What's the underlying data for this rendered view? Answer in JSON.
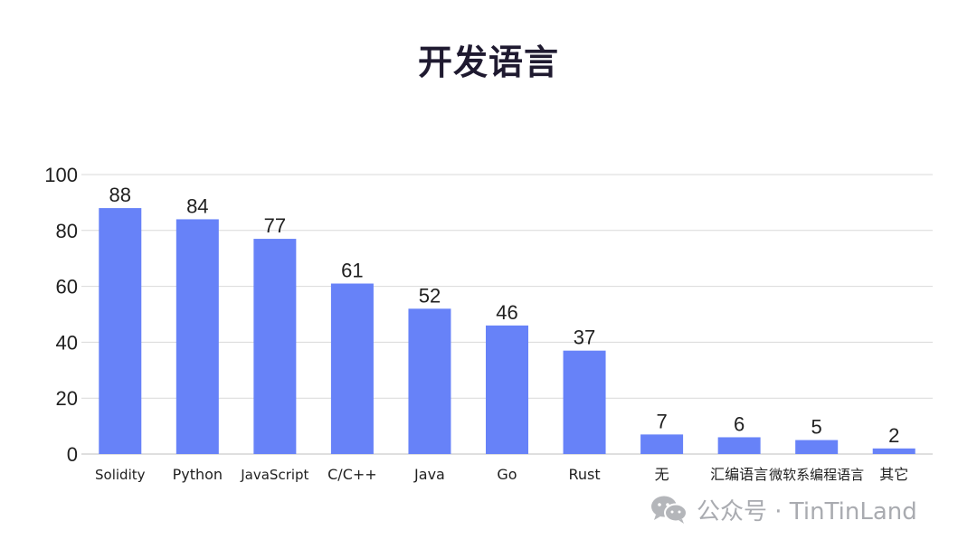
{
  "chart_data": {
    "type": "bar",
    "title": "开发语言",
    "categories": [
      "Solidity",
      "Python",
      "JavaScript",
      "C/C++",
      "Java",
      "Go",
      "Rust",
      "无",
      "汇编语言",
      "微软系编程语言",
      "其它"
    ],
    "values": [
      88,
      84,
      77,
      61,
      52,
      46,
      37,
      7,
      6,
      5,
      2
    ],
    "ylim": [
      0,
      100
    ],
    "yticks": [
      0,
      20,
      40,
      60,
      80,
      100
    ],
    "xlabel": "",
    "ylabel": "",
    "grid": true,
    "legend": "none",
    "bar_color": "#6782f8",
    "grid_color": "#d9d9d9",
    "text_color": "#1f1f1f"
  },
  "watermark": {
    "icon": "wechat-icon",
    "text": "公众号 · TinTinLand"
  }
}
